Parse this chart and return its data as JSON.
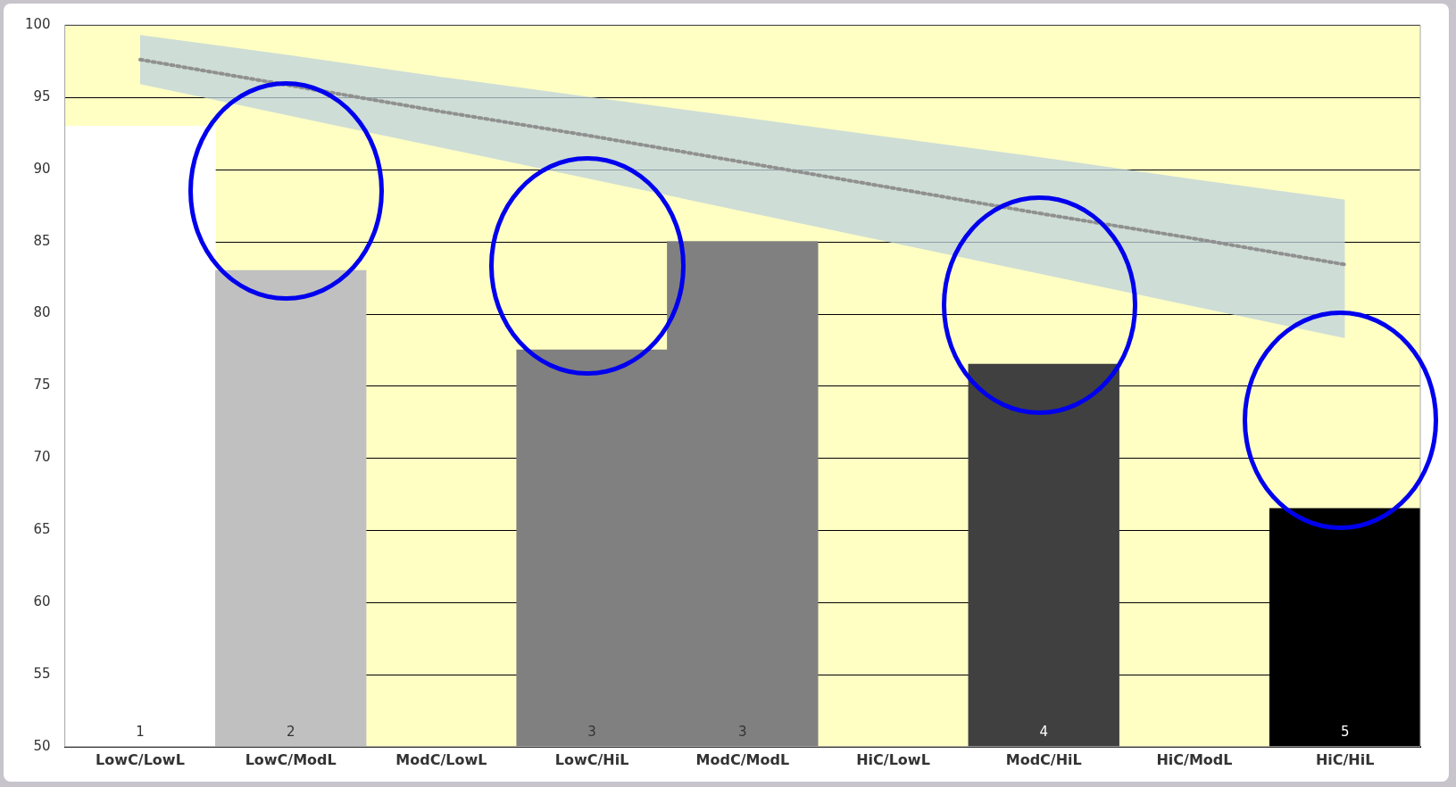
{
  "chart_data": {
    "type": "bar",
    "categories": [
      "LowC/LowL",
      "LowC/ModL",
      "ModC/LowL",
      "LowC/HiL",
      "ModC/ModL",
      "HiC/LowL",
      "ModC/HiL",
      "HiC/ModL",
      "HiC/HiL"
    ],
    "series": [
      {
        "type": "bar",
        "colors": [
          "#ffffff",
          "#c0c0c0",
          null,
          "#808080",
          "#808080",
          null,
          "#404040",
          null,
          "#000000"
        ],
        "values": [
          93,
          83,
          null,
          77.5,
          85,
          null,
          76.5,
          null,
          66.5
        ]
      },
      {
        "type": "line",
        "color": "#909090",
        "line_style": "dotted",
        "marker": "none",
        "values": [
          97.6,
          95.8,
          94.0,
          92.3,
          90.5,
          88.7,
          86.9,
          85.2,
          83.4
        ],
        "lower": [
          95.9,
          93.7,
          91.5,
          89.3,
          87.1,
          84.9,
          82.7,
          80.5,
          78.3
        ],
        "upper": [
          99.3,
          97.9,
          96.4,
          95.0,
          93.6,
          92.2,
          90.8,
          89.3,
          87.9
        ]
      }
    ],
    "annotations": [
      "1",
      "2",
      "3",
      "3",
      "4",
      "5"
    ],
    "ylim": [
      50,
      100
    ],
    "yticks": [
      50,
      55,
      60,
      65,
      70,
      75,
      80,
      85,
      90,
      95,
      100
    ],
    "grid": "y",
    "legend": false
  }
}
